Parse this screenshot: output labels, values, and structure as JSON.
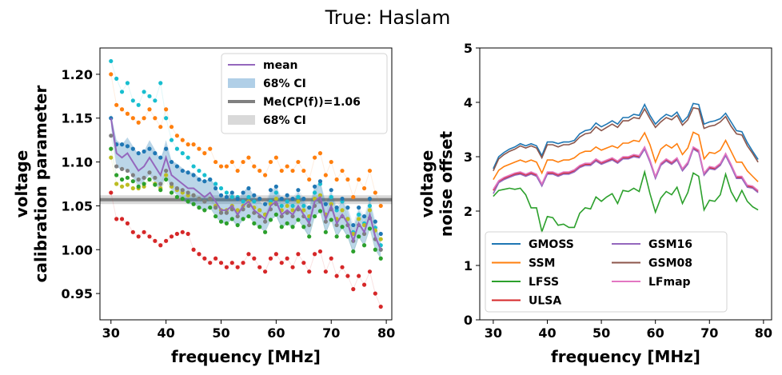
{
  "title": "True: Haslam",
  "chart_data": [
    {
      "type": "scatter",
      "xlabel": "frequency [MHz]",
      "ylabel": [
        "voltage",
        "calibration parameter"
      ],
      "xlim": [
        28,
        81
      ],
      "ylim": [
        0.92,
        1.23
      ],
      "xticks": [
        30,
        40,
        50,
        60,
        70,
        80
      ],
      "yticks": [
        0.95,
        1.0,
        1.05,
        1.1,
        1.15,
        1.2
      ],
      "ytick_labels": [
        "0.95",
        "1.00",
        "1.05",
        "1.10",
        "1.15",
        "1.20"
      ],
      "legend_position": "top-right",
      "legend": [
        {
          "label": "mean",
          "kind": "line",
          "color": "#9467bd"
        },
        {
          "label": "68% CI",
          "kind": "patch",
          "color": "#b0cfe7"
        },
        {
          "label": "Me(CP(f))=1.06",
          "kind": "line",
          "color": "#808080"
        },
        {
          "label": "68% CI",
          "kind": "patch",
          "color": "#d9d9d9"
        }
      ],
      "median": {
        "value": 1.057,
        "ci": [
          1.052,
          1.062
        ]
      },
      "x": [
        30,
        31,
        32,
        33,
        34,
        35,
        36,
        37,
        38,
        39,
        40,
        41,
        42,
        43,
        44,
        45,
        46,
        47,
        48,
        49,
        50,
        51,
        52,
        53,
        54,
        55,
        56,
        57,
        58,
        59,
        60,
        61,
        62,
        63,
        64,
        65,
        66,
        67,
        68,
        69,
        70,
        71,
        72,
        73,
        74,
        75,
        76,
        77,
        78,
        79
      ],
      "mean": [
        1.15,
        1.11,
        1.105,
        1.11,
        1.1,
        1.09,
        1.095,
        1.105,
        1.095,
        1.085,
        1.105,
        1.085,
        1.08,
        1.075,
        1.07,
        1.07,
        1.065,
        1.06,
        1.065,
        1.055,
        1.045,
        1.045,
        1.05,
        1.04,
        1.05,
        1.055,
        1.045,
        1.04,
        1.035,
        1.05,
        1.055,
        1.04,
        1.045,
        1.04,
        1.05,
        1.04,
        1.03,
        1.055,
        1.06,
        1.035,
        1.05,
        1.03,
        1.04,
        1.03,
        1.01,
        1.03,
        1.02,
        1.04,
        1.015,
        1.0
      ],
      "ci_lower": [
        1.14,
        1.095,
        1.09,
        1.092,
        1.082,
        1.072,
        1.078,
        1.085,
        1.076,
        1.068,
        1.085,
        1.068,
        1.062,
        1.057,
        1.052,
        1.052,
        1.048,
        1.043,
        1.048,
        1.038,
        1.03,
        1.03,
        1.034,
        1.025,
        1.034,
        1.038,
        1.03,
        1.025,
        1.02,
        1.034,
        1.038,
        1.024,
        1.03,
        1.024,
        1.034,
        1.024,
        1.014,
        1.038,
        1.043,
        1.018,
        1.034,
        1.014,
        1.024,
        1.014,
        0.995,
        1.014,
        1.004,
        1.024,
        1.0,
        0.99
      ],
      "ci_upper": [
        1.155,
        1.125,
        1.12,
        1.128,
        1.118,
        1.108,
        1.112,
        1.125,
        1.114,
        1.102,
        1.125,
        1.102,
        1.098,
        1.093,
        1.088,
        1.088,
        1.082,
        1.077,
        1.082,
        1.072,
        1.06,
        1.06,
        1.066,
        1.055,
        1.066,
        1.072,
        1.06,
        1.055,
        1.05,
        1.066,
        1.072,
        1.056,
        1.06,
        1.056,
        1.066,
        1.056,
        1.046,
        1.072,
        1.077,
        1.052,
        1.066,
        1.046,
        1.056,
        1.046,
        1.025,
        1.046,
        1.036,
        1.056,
        1.03,
        1.01
      ],
      "series": [
        {
          "color": "#17becf",
          "values": [
            1.215,
            1.195,
            1.18,
            1.19,
            1.17,
            1.165,
            1.18,
            1.175,
            1.17,
            1.19,
            1.15,
            1.125,
            1.115,
            1.11,
            1.105,
            1.095,
            1.09,
            1.085,
            1.08,
            1.075,
            1.07,
            1.065,
            1.06,
            1.06,
            1.055,
            1.06,
            1.055,
            1.045,
            1.04,
            1.055,
            1.065,
            1.05,
            1.055,
            1.05,
            1.06,
            1.05,
            1.035,
            1.065,
            1.075,
            1.04,
            1.06,
            1.045,
            1.055,
            1.035,
            1.02,
            1.04,
            1.03,
            1.05,
            1.025,
            1.005
          ]
        },
        {
          "color": "#ff7f0e",
          "values": [
            1.2,
            1.165,
            1.16,
            1.155,
            1.15,
            1.145,
            1.15,
            1.16,
            1.15,
            1.14,
            1.16,
            1.14,
            1.13,
            1.125,
            1.12,
            1.12,
            1.115,
            1.11,
            1.115,
            1.1,
            1.095,
            1.095,
            1.1,
            1.09,
            1.1,
            1.105,
            1.095,
            1.09,
            1.085,
            1.1,
            1.105,
            1.09,
            1.095,
            1.09,
            1.1,
            1.09,
            1.08,
            1.105,
            1.11,
            1.085,
            1.1,
            1.08,
            1.09,
            1.08,
            1.06,
            1.08,
            1.07,
            1.09,
            1.065,
            1.05
          ]
        },
        {
          "color": "#1f77b4",
          "values": [
            1.15,
            1.12,
            1.12,
            1.118,
            1.115,
            1.11,
            1.112,
            1.115,
            1.11,
            1.105,
            1.115,
            1.1,
            1.095,
            1.09,
            1.088,
            1.085,
            1.08,
            1.078,
            1.08,
            1.07,
            1.062,
            1.06,
            1.065,
            1.058,
            1.065,
            1.07,
            1.062,
            1.058,
            1.052,
            1.068,
            1.072,
            1.058,
            1.062,
            1.058,
            1.068,
            1.058,
            1.048,
            1.072,
            1.078,
            1.052,
            1.068,
            1.048,
            1.058,
            1.048,
            1.028,
            1.048,
            1.038,
            1.058,
            1.032,
            1.018
          ]
        },
        {
          "color": "#bcbd22",
          "values": [
            1.105,
            1.075,
            1.072,
            1.074,
            1.07,
            1.07,
            1.072,
            1.08,
            1.075,
            1.07,
            1.085,
            1.072,
            1.068,
            1.065,
            1.062,
            1.062,
            1.058,
            1.055,
            1.058,
            1.05,
            1.045,
            1.045,
            1.05,
            1.045,
            1.05,
            1.055,
            1.048,
            1.045,
            1.04,
            1.052,
            1.058,
            1.045,
            1.05,
            1.045,
            1.055,
            1.045,
            1.038,
            1.058,
            1.062,
            1.04,
            1.052,
            1.035,
            1.045,
            1.035,
            1.018,
            1.035,
            1.028,
            1.045,
            1.022,
            1.012
          ]
        },
        {
          "color": "#7f7f7f",
          "values": [
            1.13,
            1.095,
            1.092,
            1.09,
            1.085,
            1.08,
            1.082,
            1.088,
            1.082,
            1.075,
            1.09,
            1.075,
            1.07,
            1.068,
            1.065,
            1.062,
            1.058,
            1.055,
            1.058,
            1.048,
            1.042,
            1.042,
            1.046,
            1.038,
            1.046,
            1.05,
            1.042,
            1.038,
            1.032,
            1.046,
            1.052,
            1.038,
            1.042,
            1.038,
            1.046,
            1.038,
            1.028,
            1.05,
            1.055,
            1.032,
            1.046,
            1.028,
            1.038,
            1.028,
            1.01,
            1.028,
            1.018,
            1.036,
            1.012,
            1.0
          ]
        },
        {
          "color": "#2ca02c",
          "values": [
            1.115,
            1.085,
            1.08,
            1.082,
            1.078,
            1.072,
            1.075,
            1.08,
            1.074,
            1.068,
            1.08,
            1.065,
            1.06,
            1.058,
            1.055,
            1.052,
            1.048,
            1.045,
            1.048,
            1.038,
            1.032,
            1.03,
            1.035,
            1.028,
            1.035,
            1.038,
            1.03,
            1.026,
            1.02,
            1.034,
            1.04,
            1.026,
            1.03,
            1.026,
            1.034,
            1.026,
            1.015,
            1.038,
            1.044,
            1.02,
            1.034,
            1.015,
            1.026,
            1.015,
            0.998,
            1.015,
            1.005,
            1.024,
            1.0,
            0.99
          ]
        },
        {
          "color": "#d62728",
          "values": [
            1.065,
            1.035,
            1.035,
            1.03,
            1.02,
            1.015,
            1.02,
            1.015,
            1.01,
            1.005,
            1.01,
            1.015,
            1.018,
            1.02,
            1.018,
            1.0,
            0.995,
            0.99,
            0.985,
            0.99,
            0.985,
            0.98,
            0.985,
            0.98,
            0.985,
            0.995,
            0.99,
            0.98,
            0.975,
            0.99,
            0.995,
            0.985,
            0.99,
            0.98,
            0.995,
            0.985,
            0.975,
            0.995,
            0.998,
            0.975,
            0.99,
            0.97,
            0.98,
            0.97,
            0.955,
            0.97,
            0.96,
            0.975,
            0.95,
            0.935
          ]
        }
      ]
    },
    {
      "type": "line",
      "xlabel": "frequency [MHz]",
      "ylabel": [
        "voltage",
        "noise offset"
      ],
      "xlim": [
        27.5,
        81.5
      ],
      "ylim": [
        0,
        5
      ],
      "xticks": [
        30,
        40,
        50,
        60,
        70,
        80
      ],
      "yticks": [
        0,
        1,
        2,
        3,
        4,
        5
      ],
      "ytick_labels": [
        "0",
        "1",
        "2",
        "3",
        "4",
        "5"
      ],
      "legend_position": "lower-left",
      "x": [
        30,
        31,
        32,
        33,
        34,
        35,
        36,
        37,
        38,
        39,
        40,
        41,
        42,
        43,
        44,
        45,
        46,
        47,
        48,
        49,
        50,
        51,
        52,
        53,
        54,
        55,
        56,
        57,
        58,
        59,
        60,
        61,
        62,
        63,
        64,
        65,
        66,
        67,
        68,
        69,
        70,
        71,
        72,
        73,
        74,
        75,
        76,
        77,
        78,
        79
      ],
      "series": [
        {
          "name": "GMOSS",
          "color": "#1f77b4",
          "values": [
            2.78,
            3.0,
            3.08,
            3.14,
            3.18,
            3.24,
            3.2,
            3.24,
            3.2,
            3.02,
            3.27,
            3.27,
            3.24,
            3.27,
            3.27,
            3.3,
            3.42,
            3.48,
            3.5,
            3.62,
            3.55,
            3.6,
            3.66,
            3.6,
            3.72,
            3.72,
            3.78,
            3.76,
            3.96,
            3.76,
            3.6,
            3.7,
            3.78,
            3.74,
            3.82,
            3.64,
            3.74,
            3.98,
            3.96,
            3.6,
            3.64,
            3.66,
            3.7,
            3.8,
            3.64,
            3.48,
            3.46,
            3.26,
            3.1,
            2.95
          ]
        },
        {
          "name": "SSM",
          "color": "#ff7f0e",
          "values": [
            2.58,
            2.75,
            2.82,
            2.86,
            2.9,
            2.94,
            2.9,
            2.94,
            2.9,
            2.7,
            2.94,
            2.94,
            2.9,
            2.94,
            2.94,
            2.98,
            3.06,
            3.1,
            3.1,
            3.18,
            3.12,
            3.16,
            3.2,
            3.16,
            3.25,
            3.25,
            3.3,
            3.28,
            3.44,
            3.22,
            2.9,
            3.14,
            3.22,
            3.16,
            3.24,
            3.04,
            3.16,
            3.45,
            3.4,
            2.96,
            3.08,
            3.06,
            3.12,
            3.3,
            3.1,
            2.9,
            2.9,
            2.74,
            2.64,
            2.54
          ]
        },
        {
          "name": "LFSS",
          "color": "#2ca02c",
          "values": [
            2.27,
            2.38,
            2.4,
            2.42,
            2.4,
            2.42,
            2.3,
            2.06,
            2.06,
            1.62,
            1.9,
            1.88,
            1.74,
            1.76,
            1.7,
            1.7,
            1.96,
            2.06,
            2.04,
            2.26,
            2.18,
            2.26,
            2.32,
            2.14,
            2.38,
            2.36,
            2.42,
            2.36,
            2.72,
            2.32,
            1.98,
            2.24,
            2.36,
            2.3,
            2.44,
            2.14,
            2.34,
            2.7,
            2.64,
            2.02,
            2.2,
            2.18,
            2.3,
            2.68,
            2.36,
            2.18,
            2.38,
            2.18,
            2.08,
            2.02
          ]
        },
        {
          "name": "ULSA",
          "color": "#d62728",
          "values": [
            2.38,
            2.55,
            2.6,
            2.64,
            2.68,
            2.7,
            2.66,
            2.7,
            2.66,
            2.48,
            2.7,
            2.7,
            2.66,
            2.7,
            2.7,
            2.74,
            2.82,
            2.86,
            2.86,
            2.94,
            2.88,
            2.92,
            2.96,
            2.9,
            2.98,
            2.98,
            3.02,
            3.0,
            3.16,
            2.92,
            2.62,
            2.86,
            2.94,
            2.88,
            2.96,
            2.76,
            2.88,
            3.16,
            3.1,
            2.68,
            2.8,
            2.78,
            2.86,
            3.04,
            2.84,
            2.62,
            2.62,
            2.46,
            2.44,
            2.36
          ]
        },
        {
          "name": "GSM16",
          "color": "#9467bd",
          "values": [
            2.32,
            2.52,
            2.58,
            2.62,
            2.66,
            2.68,
            2.64,
            2.68,
            2.64,
            2.46,
            2.68,
            2.68,
            2.64,
            2.68,
            2.68,
            2.72,
            2.8,
            2.84,
            2.84,
            2.92,
            2.86,
            2.9,
            2.94,
            2.88,
            2.96,
            2.96,
            3.0,
            2.98,
            3.14,
            2.9,
            2.6,
            2.84,
            2.92,
            2.86,
            2.94,
            2.74,
            2.86,
            3.14,
            3.08,
            2.66,
            2.78,
            2.76,
            2.84,
            3.02,
            2.82,
            2.6,
            2.6,
            2.44,
            2.42,
            2.34
          ]
        },
        {
          "name": "GSM08",
          "color": "#8c564b",
          "values": [
            2.74,
            2.96,
            3.04,
            3.1,
            3.14,
            3.2,
            3.16,
            3.2,
            3.16,
            2.98,
            3.22,
            3.22,
            3.18,
            3.22,
            3.22,
            3.26,
            3.36,
            3.42,
            3.44,
            3.55,
            3.48,
            3.54,
            3.6,
            3.54,
            3.66,
            3.66,
            3.72,
            3.7,
            3.88,
            3.7,
            3.54,
            3.64,
            3.72,
            3.68,
            3.76,
            3.58,
            3.68,
            3.9,
            3.88,
            3.52,
            3.56,
            3.58,
            3.64,
            3.74,
            3.56,
            3.42,
            3.4,
            3.2,
            3.06,
            2.9
          ]
        },
        {
          "name": "LFmap",
          "color": "#e377c2",
          "values": [
            2.4,
            2.56,
            2.62,
            2.66,
            2.7,
            2.72,
            2.68,
            2.72,
            2.68,
            2.5,
            2.72,
            2.72,
            2.68,
            2.72,
            2.72,
            2.76,
            2.84,
            2.88,
            2.88,
            2.96,
            2.9,
            2.94,
            2.98,
            2.92,
            3.0,
            3.0,
            3.04,
            3.02,
            3.18,
            2.94,
            2.64,
            2.88,
            2.96,
            2.9,
            2.98,
            2.78,
            2.9,
            3.18,
            3.12,
            2.7,
            2.82,
            2.8,
            2.88,
            3.06,
            2.86,
            2.64,
            2.64,
            2.48,
            2.46,
            2.38
          ]
        }
      ]
    }
  ]
}
